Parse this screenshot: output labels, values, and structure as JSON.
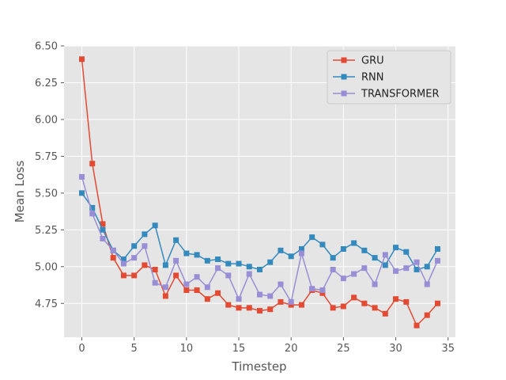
{
  "chart_data": {
    "type": "line",
    "title": "",
    "xlabel": "Timestep",
    "ylabel": "Mean Loss",
    "xlim": [
      -1.7,
      35.7
    ],
    "ylim": [
      4.52,
      6.5
    ],
    "xticks": [
      0,
      5,
      10,
      15,
      20,
      25,
      30,
      35
    ],
    "yticks": [
      4.75,
      5.0,
      5.25,
      5.5,
      5.75,
      6.0,
      6.25,
      6.5
    ],
    "xtick_labels": [
      "0",
      "5",
      "10",
      "15",
      "20",
      "25",
      "30",
      "35"
    ],
    "ytick_labels": [
      "4.75",
      "5.00",
      "5.25",
      "5.50",
      "5.75",
      "6.00",
      "6.25",
      "6.50"
    ],
    "grid": true,
    "legend_position": "top-right",
    "x": [
      0,
      1,
      2,
      3,
      4,
      5,
      6,
      7,
      8,
      9,
      10,
      11,
      12,
      13,
      14,
      15,
      16,
      17,
      18,
      19,
      20,
      21,
      22,
      23,
      24,
      25,
      26,
      27,
      28,
      29,
      30,
      31,
      32,
      33,
      34
    ],
    "series": [
      {
        "name": "GRU",
        "color": "#E24A33",
        "values": [
          6.41,
          5.7,
          5.29,
          5.06,
          4.94,
          4.94,
          5.01,
          4.98,
          4.8,
          4.94,
          4.84,
          4.84,
          4.78,
          4.82,
          4.74,
          4.72,
          4.72,
          4.7,
          4.71,
          4.76,
          4.74,
          4.74,
          4.84,
          4.82,
          4.72,
          4.73,
          4.79,
          4.75,
          4.72,
          4.68,
          4.78,
          4.76,
          4.6,
          4.67,
          4.75
        ]
      },
      {
        "name": "RNN",
        "color": "#348ABD",
        "values": [
          5.5,
          5.4,
          5.25,
          5.11,
          5.05,
          5.14,
          5.22,
          5.28,
          5.01,
          5.18,
          5.09,
          5.08,
          5.04,
          5.05,
          5.02,
          5.02,
          5.0,
          4.98,
          5.03,
          5.11,
          5.07,
          5.12,
          5.2,
          5.15,
          5.06,
          5.12,
          5.16,
          5.11,
          5.06,
          5.01,
          5.13,
          5.1,
          4.98,
          5.0,
          5.12
        ]
      },
      {
        "name": "TRANSFORMER",
        "color": "#988ED5",
        "values": [
          5.61,
          5.36,
          5.19,
          5.11,
          5.02,
          5.06,
          5.14,
          4.89,
          4.86,
          5.04,
          4.88,
          4.93,
          4.86,
          4.99,
          4.94,
          4.78,
          4.95,
          4.81,
          4.8,
          4.88,
          4.76,
          5.09,
          4.85,
          4.84,
          4.98,
          4.92,
          4.95,
          4.99,
          4.88,
          5.08,
          4.97,
          4.99,
          5.03,
          4.88,
          5.04
        ]
      }
    ]
  }
}
